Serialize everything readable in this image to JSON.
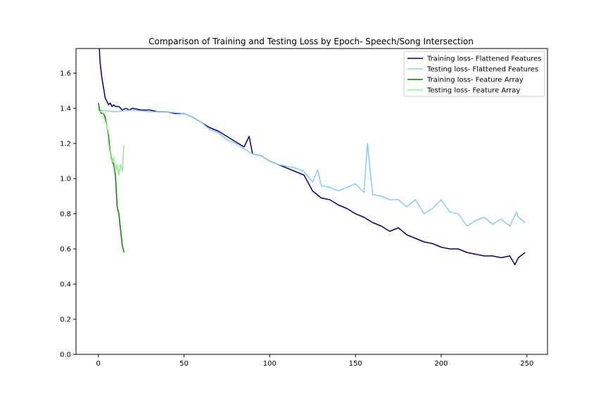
{
  "chart_data": {
    "type": "line",
    "title": "Comparison of Training and Testing Loss by Epoch- Speech/Song Intersection",
    "xlabel": "",
    "ylabel": "",
    "xlim": [
      -13,
      262
    ],
    "ylim": [
      0.0,
      1.74
    ],
    "xticks": [
      "0",
      "50",
      "100",
      "150",
      "200",
      "250"
    ],
    "yticks": [
      "0.0",
      "0.2",
      "0.4",
      "0.6",
      "0.8",
      "1.0",
      "1.2",
      "1.4",
      "1.6"
    ],
    "grid": false,
    "legend_position": "top-right",
    "series": [
      {
        "name": "Training loss- Flattened Features",
        "color": "#000080",
        "x": [
          0,
          1,
          2,
          3,
          4,
          5,
          6,
          7,
          8,
          9,
          10,
          12,
          14,
          16,
          18,
          20,
          25,
          30,
          35,
          40,
          45,
          50,
          55,
          60,
          65,
          70,
          75,
          80,
          85,
          88,
          90,
          95,
          100,
          105,
          110,
          115,
          120,
          125,
          130,
          135,
          140,
          145,
          150,
          155,
          160,
          165,
          170,
          175,
          180,
          185,
          190,
          195,
          200,
          205,
          210,
          215,
          220,
          225,
          230,
          235,
          240,
          243,
          245,
          249
        ],
        "values": [
          1.85,
          1.67,
          1.58,
          1.52,
          1.46,
          1.44,
          1.42,
          1.43,
          1.41,
          1.42,
          1.41,
          1.41,
          1.39,
          1.4,
          1.39,
          1.4,
          1.39,
          1.39,
          1.38,
          1.38,
          1.37,
          1.37,
          1.35,
          1.32,
          1.29,
          1.27,
          1.24,
          1.21,
          1.18,
          1.24,
          1.14,
          1.13,
          1.1,
          1.08,
          1.06,
          1.04,
          1.02,
          0.93,
          0.89,
          0.88,
          0.85,
          0.83,
          0.8,
          0.78,
          0.75,
          0.73,
          0.7,
          0.72,
          0.68,
          0.66,
          0.64,
          0.63,
          0.61,
          0.6,
          0.6,
          0.58,
          0.57,
          0.56,
          0.56,
          0.55,
          0.56,
          0.51,
          0.55,
          0.58
        ]
      },
      {
        "name": "Testing loss- Flattened Features",
        "color": "#87CEEB",
        "x": [
          0,
          10,
          20,
          30,
          40,
          50,
          55,
          60,
          65,
          70,
          75,
          80,
          85,
          90,
          95,
          100,
          105,
          110,
          115,
          120,
          125,
          128,
          130,
          135,
          140,
          145,
          150,
          155,
          157,
          160,
          165,
          170,
          175,
          180,
          185,
          190,
          195,
          200,
          205,
          210,
          215,
          220,
          225,
          230,
          235,
          240,
          244,
          245,
          249
        ],
        "values": [
          1.39,
          1.38,
          1.39,
          1.38,
          1.38,
          1.37,
          1.35,
          1.32,
          1.28,
          1.26,
          1.22,
          1.2,
          1.17,
          1.14,
          1.13,
          1.1,
          1.08,
          1.07,
          1.06,
          1.04,
          0.98,
          1.05,
          0.96,
          0.95,
          0.93,
          0.95,
          0.97,
          0.92,
          1.2,
          0.91,
          0.9,
          0.88,
          0.88,
          0.84,
          0.88,
          0.8,
          0.83,
          0.88,
          0.81,
          0.8,
          0.73,
          0.76,
          0.78,
          0.74,
          0.77,
          0.73,
          0.81,
          0.78,
          0.75
        ]
      },
      {
        "name": "Training loss- Feature Array",
        "color": "#008000",
        "x": [
          0,
          1,
          2,
          3,
          4,
          5,
          6,
          7,
          8,
          9,
          10,
          11,
          12,
          13,
          14,
          15
        ],
        "values": [
          1.43,
          1.38,
          1.37,
          1.37,
          1.35,
          1.3,
          1.24,
          1.15,
          1.1,
          1.08,
          1.02,
          0.84,
          0.8,
          0.71,
          0.62,
          0.58
        ]
      },
      {
        "name": "Testing loss- Feature Array",
        "color": "#90EE90",
        "x": [
          0,
          1,
          2,
          3,
          4,
          5,
          6,
          7,
          8,
          9,
          10,
          11,
          12,
          13,
          14,
          15
        ],
        "values": [
          1.39,
          1.38,
          1.39,
          1.36,
          1.33,
          1.3,
          1.2,
          1.14,
          1.09,
          1.12,
          1.04,
          1.08,
          1.02,
          1.08,
          1.04,
          1.19
        ]
      }
    ]
  }
}
